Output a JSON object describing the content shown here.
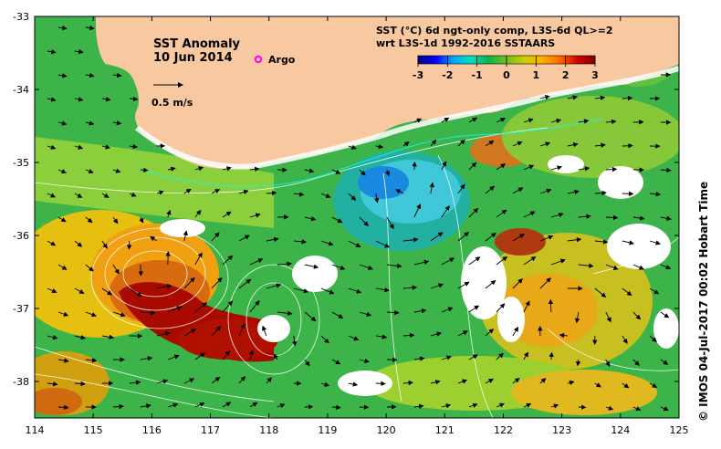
{
  "title": {
    "line1": "SST Anomaly",
    "line2": "10 Jun 2014"
  },
  "legend": {
    "argo_label": "Argo",
    "argo_color": "#ff00ff",
    "scale_label": "0.5 m/s"
  },
  "colorbar": {
    "title_line1": "SST (°C) 6d ngt-only comp, L3S-6d QL>=2",
    "title_line2": "wrt L3S-1d 1992-2016 SSTAARS",
    "ticks": [
      "-3",
      "-2",
      "-1",
      "0",
      "1",
      "2",
      "3"
    ],
    "range": [
      -3,
      3
    ],
    "colors": [
      "#00007f",
      "#0000ff",
      "#00aaff",
      "#00e0c0",
      "#12b04a",
      "#6ec020",
      "#c8d000",
      "#ffb000",
      "#ff6a00",
      "#d00000",
      "#7f0000"
    ]
  },
  "axes": {
    "x_ticks": [
      "114",
      "115",
      "116",
      "117",
      "118",
      "119",
      "120",
      "121",
      "122",
      "123",
      "124",
      "125"
    ],
    "y_ticks": [
      "-33",
      "-34",
      "-35",
      "-36",
      "-37",
      "-38"
    ],
    "x_range": [
      114,
      125
    ],
    "y_range": [
      -38.5,
      -33
    ]
  },
  "land_color": "#f8c8a0",
  "side_label": "© IMOS 04-Jul-2017 00:02 Hobart Time"
}
